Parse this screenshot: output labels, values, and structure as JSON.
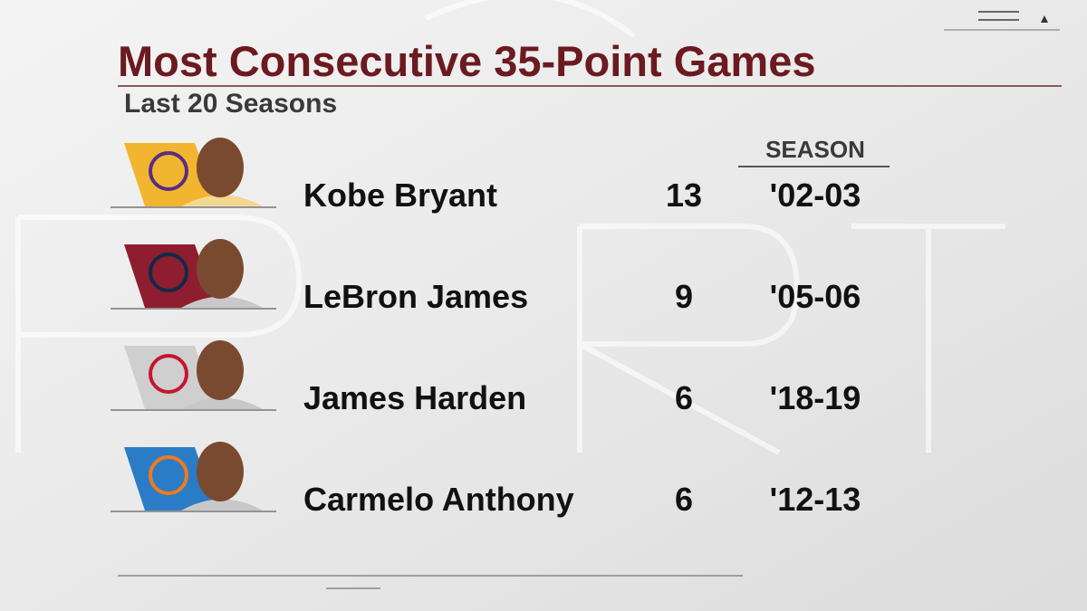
{
  "header": {
    "title": "Most Consecutive 35-Point Games",
    "subtitle": "Last 20 Seasons"
  },
  "table": {
    "column_header": "SEASON",
    "rows": [
      [
        "Kobe Bryant",
        13,
        "'02-03"
      ],
      [
        "LeBron James",
        9,
        "'05-06"
      ],
      [
        "James Harden",
        6,
        "'18-19"
      ],
      [
        "Carmelo Anthony",
        6,
        "'12-13"
      ]
    ]
  }
}
